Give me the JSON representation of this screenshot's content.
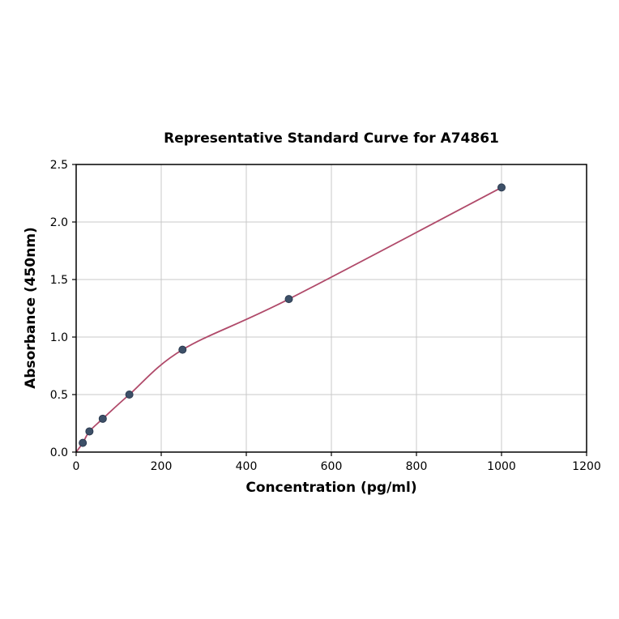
{
  "figure": {
    "title": "Representative Standard Curve for A74861",
    "xlabel": "Concentration (pg/ml)",
    "ylabel": "Absorbance (450nm)"
  },
  "chart_data": {
    "type": "scatter",
    "title": "Representative Standard Curve for A74861",
    "xlabel": "Concentration (pg/ml)",
    "ylabel": "Absorbance (450nm)",
    "xlim": [
      0,
      1200
    ],
    "ylim": [
      0,
      2.5
    ],
    "xticks": [
      0,
      200,
      400,
      600,
      800,
      1000,
      1200
    ],
    "yticks": [
      0.0,
      0.5,
      1.0,
      1.5,
      2.0,
      2.5
    ],
    "grid": true,
    "legend": "none",
    "points": [
      {
        "x": 15.6,
        "y": 0.08
      },
      {
        "x": 31.2,
        "y": 0.18
      },
      {
        "x": 62.5,
        "y": 0.29
      },
      {
        "x": 125,
        "y": 0.5
      },
      {
        "x": 250,
        "y": 0.89
      },
      {
        "x": 500,
        "y": 1.33
      },
      {
        "x": 1000,
        "y": 2.3
      }
    ],
    "curve_start": {
      "x": 0,
      "y": 0.0
    },
    "colors": {
      "curve": "#b04a6a",
      "point_fill": "#3d5068",
      "point_edge": "#2c3b50",
      "grid": "#c9c9c9",
      "spine": "#000000"
    }
  }
}
